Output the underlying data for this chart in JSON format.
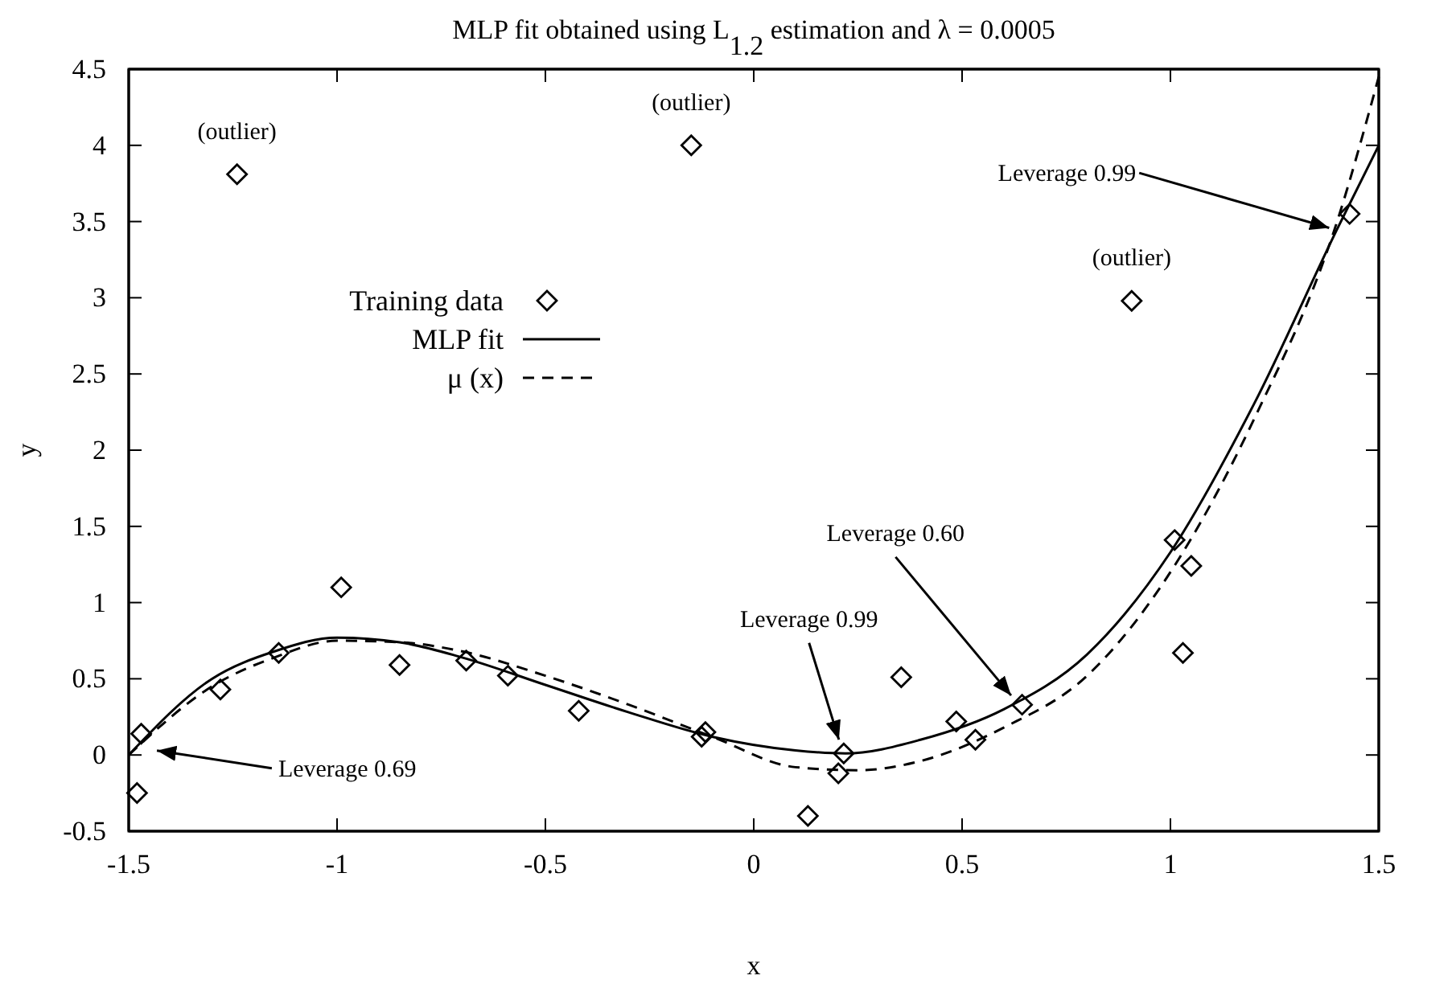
{
  "chart_data": {
    "type": "line",
    "title": "MLP fit obtained using L$_{1.2}$ estimation and  λ = 0.0005",
    "xlabel": "x",
    "ylabel": "y",
    "xlim": [
      -1.5,
      1.5
    ],
    "ylim": [
      -0.5,
      4.5
    ],
    "xticks": [
      -1.5,
      -1,
      -0.5,
      0,
      0.5,
      1,
      1.5
    ],
    "yticks": [
      -0.5,
      0,
      0.5,
      1,
      1.5,
      2,
      2.5,
      3,
      3.5,
      4,
      4.5
    ],
    "grid": false,
    "legend": "left",
    "series": [
      {
        "name": "Training data",
        "type": "scatter",
        "marker": "diamond",
        "color": "#000000",
        "x": [
          -1.48,
          -1.47,
          -1.28,
          -1.24,
          -1.14,
          -0.99,
          -0.85,
          -0.69,
          -0.59,
          -0.42,
          -0.15,
          -0.125,
          -0.116,
          0.13,
          0.203,
          0.216,
          0.354,
          0.486,
          0.532,
          0.644,
          0.907,
          1.01,
          1.03,
          1.05,
          1.43
        ],
        "values": [
          -0.25,
          0.14,
          0.43,
          3.81,
          0.67,
          1.1,
          0.59,
          0.62,
          0.52,
          0.29,
          4.0,
          0.12,
          0.15,
          -0.4,
          -0.12,
          0.01,
          0.51,
          0.22,
          0.1,
          0.33,
          2.98,
          1.41,
          0.67,
          1.24,
          3.55
        ]
      },
      {
        "name": "MLP fit",
        "line_style": "solid",
        "color": "#000000",
        "x": [
          -1.5,
          -1.3,
          -1.15,
          -1,
          -0.85,
          -0.7,
          -0.5,
          -0.3,
          -0.1,
          0.1,
          0.22,
          0.4,
          0.6,
          0.8,
          1,
          1.2,
          1.4,
          1.5
        ],
        "values": [
          0,
          0.5,
          0.68,
          0.77,
          0.74,
          0.64,
          0.46,
          0.28,
          0.12,
          0.03,
          0.01,
          0.1,
          0.3,
          0.66,
          1.33,
          2.3,
          3.45,
          4
        ]
      },
      {
        "name": "μ (x)",
        "type": "line",
        "line_style": "dashed",
        "color": "#000000",
        "x": [
          -1.5,
          -1.3,
          -1.15,
          -1,
          -0.85,
          -0.7,
          -0.5,
          -0.3,
          -0.1,
          0.1,
          0.25,
          0.4,
          0.6,
          0.8,
          1,
          1.2,
          1.4,
          1.5
        ],
        "values": [
          0,
          0.45,
          0.64,
          0.75,
          0.74,
          0.68,
          0.52,
          0.33,
          0.12,
          -0.08,
          -0.1,
          -0.04,
          0.18,
          0.52,
          1.2,
          2.2,
          3.5,
          4.45
        ]
      }
    ],
    "annotations": [
      {
        "text": "(outlier)",
        "x": -1.24,
        "y": 3.81
      },
      {
        "text": "(outlier)",
        "x": -0.15,
        "y": 4.0
      },
      {
        "text": "(outlier)",
        "x": 0.907,
        "y": 2.98
      },
      {
        "text": "Leverage 0.69",
        "x": -1.45,
        "y": 0.05
      },
      {
        "text": "Leverage 0.99",
        "x": 0.21,
        "y": 0.05
      },
      {
        "text": "Leverage 0.60",
        "x": 0.63,
        "y": 0.35
      },
      {
        "text": "Leverage 0.99",
        "x": 1.4,
        "y": 3.45
      }
    ]
  }
}
